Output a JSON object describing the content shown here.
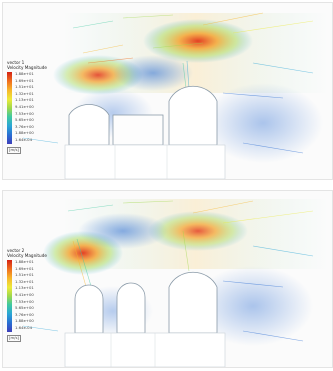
{
  "panels": [
    {
      "id": "top",
      "legend": {
        "title_line1": "vector 1",
        "title_line2": "Velocity Magnitude",
        "ticks": [
          "1.88e+01",
          "1.69e+01",
          "1.51e+01",
          "1.32e+01",
          "1.13e+01",
          "9.41e+00",
          "7.53e+00",
          "5.65e+00",
          "3.76e+00",
          "1.88e+00",
          "1.64e-04"
        ],
        "unit": "[m/s]"
      }
    },
    {
      "id": "bottom",
      "legend": {
        "title_line1": "vector 2",
        "title_line2": "Velocity Magnitude",
        "ticks": [
          "1.88e+01",
          "1.69e+01",
          "1.51e+01",
          "1.32e+01",
          "1.13e+01",
          "9.41e+00",
          "7.53e+00",
          "5.65e+00",
          "3.76e+00",
          "1.88e+00",
          "1.64e-04"
        ],
        "unit": "[m/s]"
      }
    }
  ],
  "colors": {
    "high": "#d42214",
    "mid_high": "#f7b52a",
    "mid": "#9fd84b",
    "mid_low": "#2aa5d6",
    "low": "#3f3fba"
  }
}
